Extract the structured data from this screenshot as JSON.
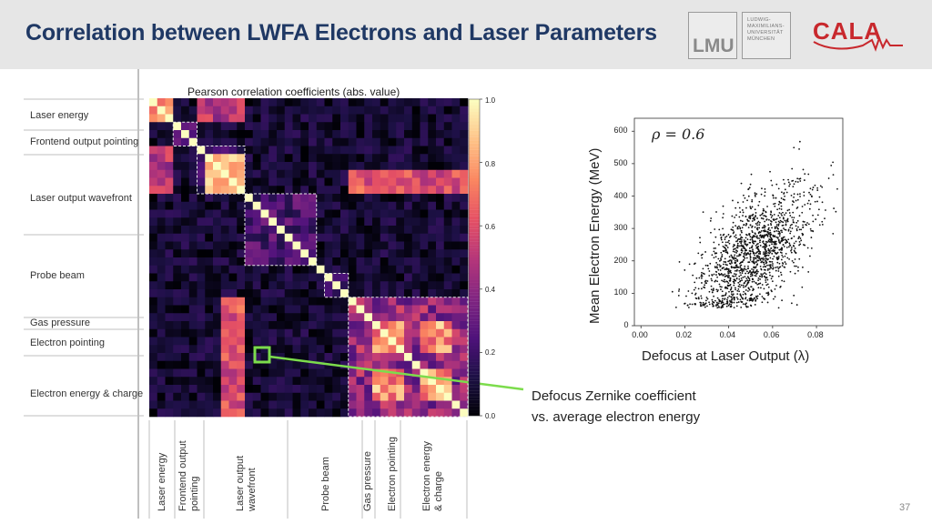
{
  "slide": {
    "title": "Correlation between LWFA Electrons and Laser Parameters",
    "page_number": "37",
    "logo_lmu": "LMU",
    "logo_lmu_text": [
      "LUDWIG-",
      "MAXIMILIANS-",
      "UNIVERSITÄT",
      "MÜNCHEN"
    ],
    "logo_cala": "CALA",
    "annotation_line1": "Defocus Zernike coefficient",
    "annotation_line2": "vs. average electron energy",
    "accent_color": "#7cdc4c"
  },
  "heatmap_labels": {
    "title": "Pearson correlation coefficients (abs. value)",
    "rows": [
      "Laser energy",
      "Frontend output pointing",
      "Laser output wavefront",
      "Probe beam",
      "Gas pressure",
      "Electron pointing",
      "Electron energy & charge"
    ],
    "cols": [
      [
        "Laser energy"
      ],
      [
        "Frontend output",
        "pointing"
      ],
      [
        "Laser output",
        "wavefront"
      ],
      [
        "Probe beam"
      ],
      [
        "Gas pressure"
      ],
      [
        "Electron pointing"
      ],
      [
        "Electron energy",
        "& charge"
      ]
    ],
    "colorbar_ticks": [
      "1.0",
      "0.8",
      "0.6",
      "0.4",
      "0.2",
      "0.0"
    ]
  },
  "scatter_labels": {
    "rho_label": "ρ = 0.6",
    "xlabel": "Defocus at Laser Output (λ)",
    "ylabel": "Mean Electron Energy (MeV)"
  },
  "chart_data": [
    {
      "type": "heatmap",
      "title": "Pearson correlation coefficients (abs. value)",
      "row_groups": [
        "Laser energy",
        "Frontend output pointing",
        "Laser output wavefront",
        "Probe beam",
        "Gas pressure",
        "Electron pointing",
        "Electron energy & charge"
      ],
      "col_groups": [
        "Laser energy",
        "Frontend output pointing",
        "Laser output wavefront",
        "Probe beam",
        "Gas pressure",
        "Electron pointing",
        "Electron energy & charge"
      ],
      "colorbar_range": [
        0.0,
        1.0
      ],
      "colorbar_ticks": [
        0.0,
        0.2,
        0.4,
        0.6,
        0.8,
        1.0
      ],
      "highlighted_cell": {
        "row": "Electron energy & charge",
        "col": "Laser output wavefront",
        "value": 0.6
      }
    },
    {
      "type": "scatter",
      "xlabel": "Defocus at Laser Output (λ)",
      "ylabel": "Mean Electron Energy (MeV)",
      "xlim": [
        -0.003,
        0.092
      ],
      "ylim": [
        0,
        640
      ],
      "xticks": [
        0.0,
        0.02,
        0.04,
        0.06,
        0.08
      ],
      "yticks": [
        0,
        100,
        200,
        300,
        400,
        500,
        600
      ],
      "annotation": "ρ = 0.6",
      "correlation": 0.6,
      "points_estimate": {
        "count": 1500,
        "x_mean": 0.052,
        "x_std": 0.013,
        "y_mean": 220,
        "y_std": 110
      }
    }
  ]
}
